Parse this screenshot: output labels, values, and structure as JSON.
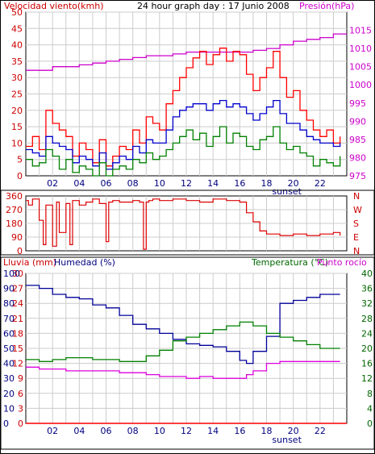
{
  "header": {
    "left_label": "Velocidad viento(kmh)",
    "title": "24 hour graph day : 17 Junio 2008",
    "right_label": "Presión(hPa)"
  },
  "colors": {
    "wind_gust": "#ff0000",
    "wind_avg": "#0000cc",
    "wind_low": "#008000",
    "pressure": "#cc00cc",
    "direction": "#dd0000",
    "humidity": "#000099",
    "temperature": "#008000",
    "dewpoint": "#dd00dd",
    "rain": "#ff0000",
    "grid": "#cccccc",
    "left_axis_red": "#cc0000",
    "pressure_axis": "#cc00cc",
    "dark_blue": "#000080",
    "dark_green": "#006600"
  },
  "x_axis": {
    "tick_labels": [
      "02",
      "04",
      "06",
      "08",
      "10",
      "12",
      "14",
      "16",
      "18",
      "20",
      "22"
    ],
    "sunset_label": "sunset"
  },
  "chart_data": [
    {
      "type": "line",
      "name": "wind-pressure",
      "left_axis": {
        "label": "Velocidad viento(kmh)",
        "ticks": [
          0,
          5,
          10,
          15,
          20,
          25,
          30,
          35,
          40,
          45,
          50
        ],
        "range": [
          0,
          50
        ]
      },
      "right_axis": {
        "label": "Presión(hPa)",
        "ticks": [
          975,
          980,
          985,
          990,
          995,
          1000,
          1005,
          1010,
          1015
        ],
        "range": [
          975,
          1020
        ]
      },
      "x_range": [
        0,
        24
      ],
      "series": [
        {
          "key": "pressure",
          "axis": "right",
          "x": [
            0,
            1,
            2,
            3,
            4,
            5,
            6,
            7,
            8,
            9,
            10,
            11,
            12,
            13,
            14,
            15,
            16,
            17,
            18,
            19,
            20,
            21,
            22,
            23,
            24
          ],
          "y": [
            1004,
            1004,
            1005,
            1005,
            1005.5,
            1006,
            1006.5,
            1007,
            1007.5,
            1008,
            1008,
            1008.5,
            1009,
            1009,
            1009,
            1009,
            1009,
            1009.5,
            1010,
            1011,
            1012,
            1012.5,
            1013,
            1014,
            1014
          ]
        },
        {
          "key": "wind_gust",
          "axis": "left",
          "x": [
            0,
            0.5,
            1,
            1.5,
            2,
            2.5,
            3,
            3.5,
            4,
            4.5,
            5,
            5.5,
            6,
            6.5,
            7,
            7.5,
            8,
            8.5,
            9,
            9.5,
            10,
            10.5,
            11,
            11.5,
            12,
            12.5,
            13,
            13.5,
            14,
            14.5,
            15,
            15.5,
            16,
            16.5,
            17,
            17.5,
            18,
            18.5,
            19,
            19.5,
            20,
            20.5,
            21,
            21.5,
            22,
            22.5,
            23,
            23.5
          ],
          "y": [
            9,
            12,
            8,
            20,
            16,
            14,
            12,
            6,
            10,
            8,
            4,
            11,
            3,
            6,
            9,
            8,
            14,
            10,
            18,
            16,
            14,
            22,
            26,
            30,
            33,
            36,
            38,
            34,
            37,
            39,
            35,
            38,
            37,
            31,
            26,
            30,
            33,
            38,
            30,
            24,
            26,
            20,
            17,
            14,
            12,
            14,
            10,
            12
          ]
        },
        {
          "key": "wind_avg",
          "axis": "left",
          "x": [
            0,
            0.5,
            1,
            1.5,
            2,
            2.5,
            3,
            3.5,
            4,
            4.5,
            5,
            5.5,
            6,
            6.5,
            7,
            7.5,
            8,
            8.5,
            9,
            9.5,
            10,
            10.5,
            11,
            11.5,
            12,
            12.5,
            13,
            13.5,
            14,
            14.5,
            15,
            15.5,
            16,
            16.5,
            17,
            17.5,
            18,
            18.5,
            19,
            19.5,
            20,
            20.5,
            21,
            21.5,
            22,
            22.5,
            23,
            23.5
          ],
          "y": [
            8,
            7,
            6,
            12,
            10,
            9,
            8,
            4,
            6,
            5,
            3,
            7,
            2,
            4,
            6,
            5,
            9,
            7,
            11,
            10,
            10,
            14,
            18,
            20,
            21,
            22,
            22,
            20,
            22,
            23,
            21,
            22,
            21,
            19,
            17,
            19,
            21,
            23,
            19,
            16,
            16,
            14,
            12,
            11,
            10,
            10,
            9,
            10
          ]
        },
        {
          "key": "wind_low",
          "axis": "left",
          "x": [
            0,
            0.5,
            1,
            1.5,
            2,
            2.5,
            3,
            3.5,
            4,
            4.5,
            5,
            5.5,
            6,
            6.5,
            7,
            7.5,
            8,
            8.5,
            9,
            9.5,
            10,
            10.5,
            11,
            11.5,
            12,
            12.5,
            13,
            13.5,
            14,
            14.5,
            15,
            15.5,
            16,
            16.5,
            17,
            17.5,
            18,
            18.5,
            19,
            19.5,
            20,
            20.5,
            21,
            21.5,
            22,
            22.5,
            23,
            23.5
          ],
          "y": [
            5,
            3,
            4,
            8,
            6,
            2,
            5,
            1,
            3,
            2,
            0,
            4,
            0,
            2,
            3,
            2,
            5,
            4,
            7,
            5,
            6,
            8,
            10,
            12,
            14,
            11,
            13,
            9,
            12,
            15,
            10,
            13,
            12,
            9,
            8,
            11,
            12,
            15,
            10,
            8,
            9,
            7,
            6,
            3,
            5,
            4,
            3,
            6
          ]
        }
      ]
    },
    {
      "type": "line",
      "name": "direction",
      "left_axis": {
        "ticks": [
          0,
          90,
          180,
          270,
          360
        ],
        "range": [
          0,
          360
        ]
      },
      "right_axis": {
        "ticks": [
          "N",
          "W",
          "S",
          "E",
          "N"
        ]
      },
      "x_range": [
        0,
        24
      ],
      "series": [
        {
          "key": "direction",
          "x": [
            0,
            0.2,
            0.5,
            1,
            1.3,
            1.5,
            2,
            2.3,
            2.5,
            3,
            3.3,
            3.5,
            4,
            4.5,
            5,
            5.5,
            6,
            6.2,
            6.5,
            7,
            8,
            8.5,
            8.8,
            9,
            9.2,
            9.5,
            10,
            11,
            12,
            13,
            14,
            15,
            16,
            16.5,
            17,
            17.5,
            18,
            19,
            20,
            21,
            22,
            23,
            23.5
          ],
          "y": [
            330,
            300,
            340,
            200,
            40,
            300,
            30,
            320,
            120,
            310,
            40,
            330,
            300,
            320,
            340,
            310,
            60,
            320,
            330,
            320,
            330,
            320,
            10,
            320,
            330,
            340,
            330,
            340,
            330,
            320,
            340,
            330,
            320,
            250,
            190,
            130,
            110,
            100,
            110,
            100,
            110,
            120,
            100
          ]
        }
      ]
    },
    {
      "type": "line",
      "name": "rain-humidity-temperature",
      "left_axis_rain": {
        "label": "Lluvia (mm)",
        "ticks": [
          0,
          3,
          6,
          9,
          12,
          15,
          18,
          21,
          24,
          27,
          30
        ],
        "range": [
          0,
          30
        ]
      },
      "left_axis_humidity": {
        "label": "Humedad (%)",
        "ticks": [
          0,
          10,
          20,
          30,
          40,
          50,
          60,
          70,
          80,
          90,
          100
        ],
        "range": [
          0,
          100
        ]
      },
      "right_axis": {
        "label": "Temperatura (°C)",
        "label_b": "Punto rocío",
        "ticks": [
          0,
          4,
          8,
          12,
          16,
          20,
          24,
          28,
          32,
          36,
          40
        ],
        "range": [
          0,
          40
        ]
      },
      "x_range": [
        0,
        24
      ],
      "series": [
        {
          "key": "humidity",
          "x": [
            0,
            1,
            2,
            3,
            4,
            5,
            6,
            7,
            8,
            9,
            10,
            11,
            12,
            13,
            14,
            15,
            16,
            16.5,
            17,
            18,
            19,
            20,
            21,
            22,
            23,
            23.5
          ],
          "y": [
            92,
            90,
            86,
            84,
            83,
            79,
            77,
            72,
            66,
            63,
            60,
            56,
            53,
            52,
            51,
            48,
            42,
            40,
            48,
            58,
            80,
            82,
            84,
            86,
            86,
            86
          ]
        },
        {
          "key": "temperature",
          "x": [
            0,
            1,
            2,
            3,
            4,
            5,
            6,
            7,
            8,
            9,
            10,
            11,
            12,
            13,
            14,
            15,
            16,
            17,
            18,
            19,
            20,
            21,
            22,
            23,
            23.5
          ],
          "y": [
            17,
            16.5,
            17,
            17.5,
            17.5,
            17,
            17,
            16.5,
            16.5,
            18,
            19.5,
            22,
            23,
            24,
            25,
            26,
            27,
            26,
            24,
            23,
            22,
            21,
            20,
            20,
            20
          ]
        },
        {
          "key": "dewpoint",
          "x": [
            0,
            1,
            2,
            3,
            4,
            5,
            6,
            7,
            8,
            9,
            10,
            11,
            12,
            13,
            14,
            15,
            16,
            16.5,
            17,
            18,
            19,
            20,
            21,
            22,
            23,
            23.5
          ],
          "y": [
            15,
            14.5,
            14.5,
            14,
            14,
            14,
            14,
            13.5,
            13.5,
            13,
            12.5,
            12.5,
            12,
            12.5,
            12,
            12,
            12,
            13,
            14,
            16,
            16.5,
            16.5,
            16.5,
            16.5,
            16.5,
            16.5
          ]
        },
        {
          "key": "rain",
          "x": [
            0,
            24
          ],
          "y": [
            0,
            0
          ]
        }
      ]
    }
  ],
  "panels": {
    "p3": {
      "rain_label": "Lluvia (mm)",
      "humidity_label": "Humedad (%)",
      "temperature_label": "Temperatura (°C)",
      "dewpoint_label": "Punto rocío"
    }
  }
}
